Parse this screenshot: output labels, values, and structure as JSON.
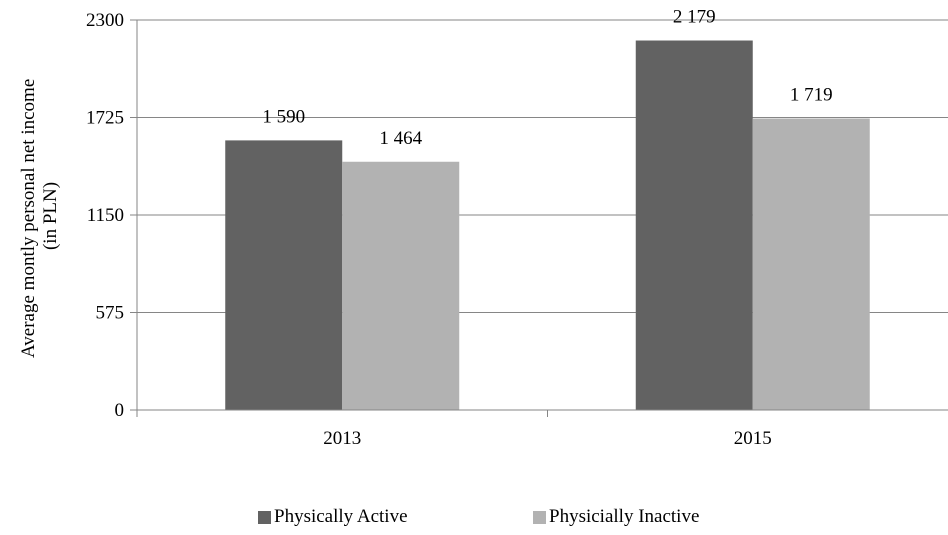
{
  "chart_data": {
    "type": "bar",
    "title": "",
    "xlabel": "",
    "ylabel": "Average montly  personal net income (in PLN)",
    "ylabel_lines": [
      "Average montly  personal net income",
      "(in PLN)"
    ],
    "categories": [
      "2013",
      "2015"
    ],
    "ylim": [
      0,
      2300
    ],
    "yticks": [
      0,
      575,
      1150,
      1725,
      2300
    ],
    "grid": true,
    "legend_position": "bottom",
    "series": [
      {
        "name": "Physically Active",
        "values": [
          1590,
          2179
        ],
        "labels": [
          "1 590",
          "2 179"
        ],
        "color": "#626262"
      },
      {
        "name": "Physicially Inactive",
        "values": [
          1464,
          1719
        ],
        "labels": [
          "1 464",
          "1 719"
        ],
        "color": "#b2b2b2"
      }
    ]
  },
  "colors": {
    "grid": "#868686",
    "axis": "#868686"
  }
}
